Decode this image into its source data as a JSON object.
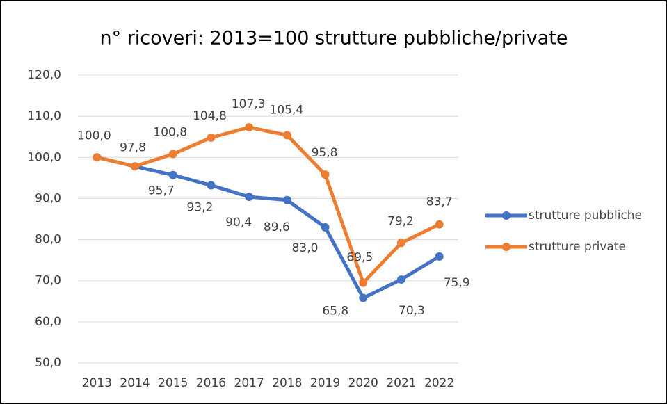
{
  "chart_data": {
    "type": "line",
    "title": "n° ricoveri: 2013=100 strutture pubbliche/private",
    "categories": [
      "2013",
      "2014",
      "2015",
      "2016",
      "2017",
      "2018",
      "2019",
      "2020",
      "2021",
      "2022"
    ],
    "series": [
      {
        "name": "strutture pubbliche",
        "color": "#4472c4",
        "values": [
          100.0,
          97.8,
          95.7,
          93.2,
          90.4,
          89.6,
          83.0,
          65.8,
          70.3,
          75.9
        ],
        "value_labels": [
          null,
          null,
          "95,7",
          "93,2",
          "90,4",
          "89,6",
          "83,0",
          "65,8",
          "70,3",
          "75,9"
        ]
      },
      {
        "name": "strutture private",
        "color": "#ed7d31",
        "values": [
          100.0,
          97.8,
          100.8,
          104.8,
          107.3,
          105.4,
          95.8,
          69.5,
          79.2,
          83.7
        ],
        "value_labels": [
          "100,0",
          "97,8",
          "100,8",
          "104,8",
          "107,3",
          "105,4",
          "95,8",
          "69,5",
          "79,2",
          "83,7"
        ]
      }
    ],
    "ylim": [
      50,
      120
    ],
    "yticks": [
      {
        "value": 50,
        "label": "50,0"
      },
      {
        "value": 60,
        "label": "60,0"
      },
      {
        "value": 70,
        "label": "70,0"
      },
      {
        "value": 80,
        "label": "80,0"
      },
      {
        "value": 90,
        "label": "90,0"
      },
      {
        "value": 100,
        "label": "100,0"
      },
      {
        "value": 110,
        "label": "110,0"
      },
      {
        "value": 120,
        "label": "120,0"
      }
    ],
    "grid": true,
    "legend": "right"
  }
}
